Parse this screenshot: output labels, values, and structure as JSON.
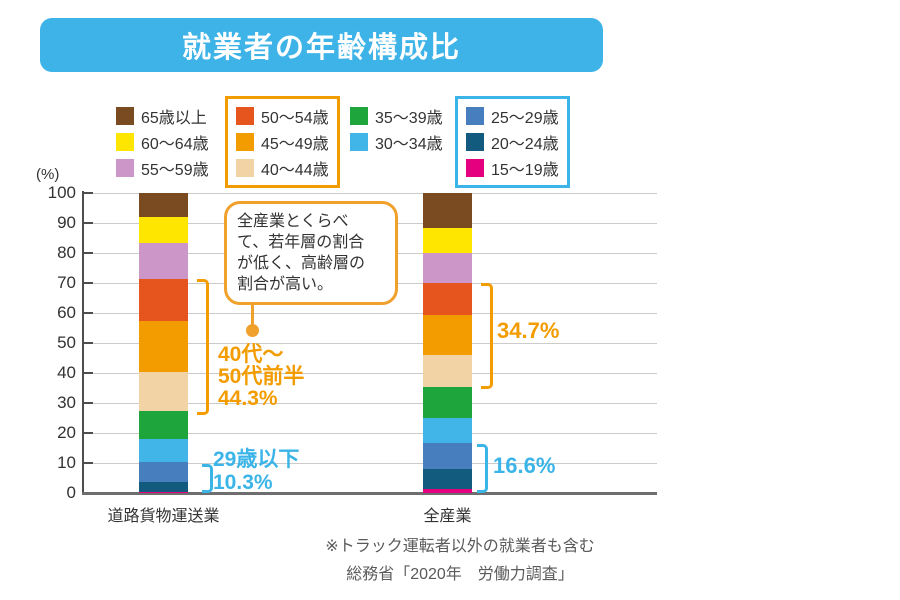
{
  "chart_data": {
    "type": "bar",
    "stacked": true,
    "title": "就業者の年齢構成比",
    "categories": [
      "道路貨物運送業",
      "全産業"
    ],
    "series": [
      {
        "name": "15〜19歳",
        "color": "#E4007F",
        "values": [
          0.5,
          1.2
        ]
      },
      {
        "name": "20〜24歳",
        "color": "#125A7E",
        "values": [
          3.2,
          6.9
        ]
      },
      {
        "name": "25〜29歳",
        "color": "#477FBE",
        "values": [
          6.6,
          8.5
        ]
      },
      {
        "name": "30〜34歳",
        "color": "#41B4E8",
        "values": [
          7.7,
          8.4
        ]
      },
      {
        "name": "35〜39歳",
        "color": "#1EA53C",
        "values": [
          9.2,
          10.3
        ]
      },
      {
        "name": "40〜44歳",
        "color": "#F1D3A6",
        "values": [
          13.0,
          10.6
        ]
      },
      {
        "name": "45〜49歳",
        "color": "#F39C00",
        "values": [
          17.3,
          13.5
        ]
      },
      {
        "name": "50〜54歳",
        "color": "#E7551E",
        "values": [
          14.0,
          10.6
        ]
      },
      {
        "name": "55〜59歳",
        "color": "#CC96C9",
        "values": [
          11.7,
          10.0
        ]
      },
      {
        "name": "60〜64歳",
        "color": "#FFE600",
        "values": [
          8.9,
          8.2
        ]
      },
      {
        "name": "65歳以上",
        "color": "#7A4A20",
        "values": [
          7.9,
          11.8
        ]
      }
    ],
    "ylim": [
      0,
      100
    ],
    "yticks": [
      100,
      90,
      80,
      70,
      60,
      50,
      40,
      30,
      20,
      10,
      0
    ],
    "y_unit": "(%)",
    "grid": true,
    "legend_position": "top",
    "annotation_groups": [
      {
        "label": "40代〜50代前半",
        "道路貨物運送業": 44.3,
        "全産業": 34.7
      },
      {
        "label": "29歳以下",
        "道路貨物運送業": 10.3,
        "全産業": 16.6
      }
    ]
  },
  "legend": {
    "columns": [
      {
        "boxed": false,
        "items": [
          "65歳以上",
          "60〜64歳",
          "55〜59歳"
        ]
      },
      {
        "boxed": true,
        "box_color": "#F39C00",
        "items": [
          "50〜54歳",
          "45〜49歳",
          "40〜44歳"
        ]
      },
      {
        "boxed": false,
        "items": [
          "35〜39歳",
          "30〜34歳"
        ]
      },
      {
        "boxed": true,
        "box_color": "#3BB4E8",
        "items": [
          "25〜29歳",
          "20〜24歳",
          "15〜19歳"
        ]
      }
    ]
  },
  "annotations": {
    "callout": {
      "lines": [
        "全産業とくらべ",
        "て、若年層の割合",
        "が低く、高齢層の",
        "割合が高い。"
      ]
    },
    "mid_left": {
      "lines": [
        "40代〜",
        "50代前半",
        "44.3%"
      ]
    },
    "young_left": {
      "lines": [
        "29歳以下",
        "10.3%"
      ]
    },
    "mid_right": {
      "value": "34.7%"
    },
    "young_right": {
      "value": "16.6%"
    }
  },
  "footer": {
    "note": "※トラック運転者以外の就業者も含む",
    "source": "総務省「2020年　労働力調査」"
  }
}
